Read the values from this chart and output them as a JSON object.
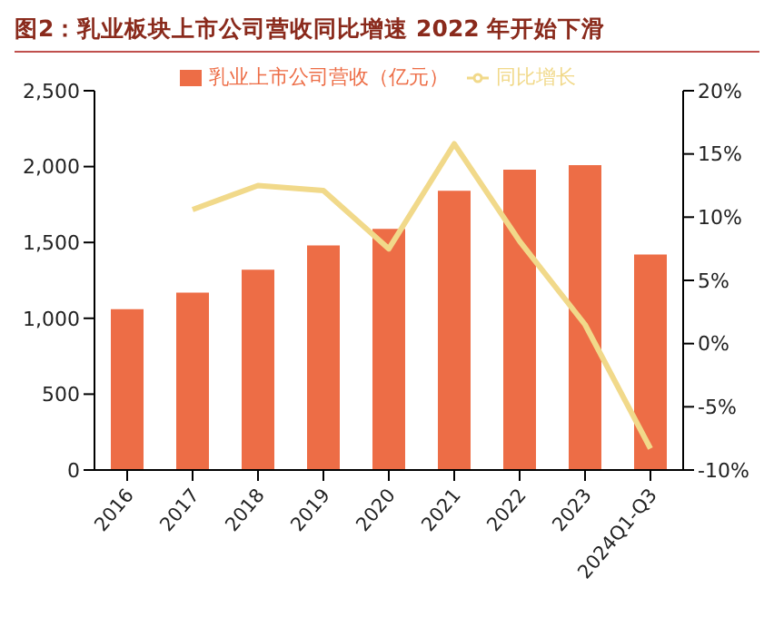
{
  "chart_data": {
    "type": "bar",
    "title": "图2：乳业板块上市公司营收同比增速 2022 年开始下滑",
    "categories": [
      "2016",
      "2017",
      "2018",
      "2019",
      "2020",
      "2021",
      "2022",
      "2023",
      "2024Q1-Q3"
    ],
    "series": [
      {
        "name": "乳业上市公司营收（亿元）",
        "color": "#ed6d46",
        "values": [
          1060,
          1170,
          1320,
          1480,
          1590,
          1840,
          1980,
          2010,
          1420
        ]
      },
      {
        "name": "同比增长",
        "type": "line",
        "color": "#f1d98a",
        "axis": "y2",
        "values": [
          null,
          10.6,
          12.5,
          12.1,
          7.5,
          15.8,
          8.1,
          1.5,
          -8.3
        ]
      }
    ],
    "ylim": [
      0,
      2500
    ],
    "yticks": [
      0,
      500,
      {
        "value": 1000,
        "label": "1,000"
      },
      {
        "value": 1500,
        "label": "1,500"
      },
      {
        "value": 2000,
        "label": "2,000"
      },
      {
        "value": 2500,
        "label": "2,500"
      }
    ],
    "y2lim": [
      -10,
      20
    ],
    "y2ticks": [
      {
        "value": -10,
        "label": "-10%"
      },
      {
        "value": -5,
        "label": "-5%"
      },
      {
        "value": 0,
        "label": "0%"
      },
      {
        "value": 5,
        "label": "5%"
      },
      {
        "value": 10,
        "label": "10%"
      },
      {
        "value": 15,
        "label": "15%"
      },
      {
        "value": 20,
        "label": "20%"
      }
    ],
    "grid": false,
    "legend": "top",
    "marker": "none"
  }
}
